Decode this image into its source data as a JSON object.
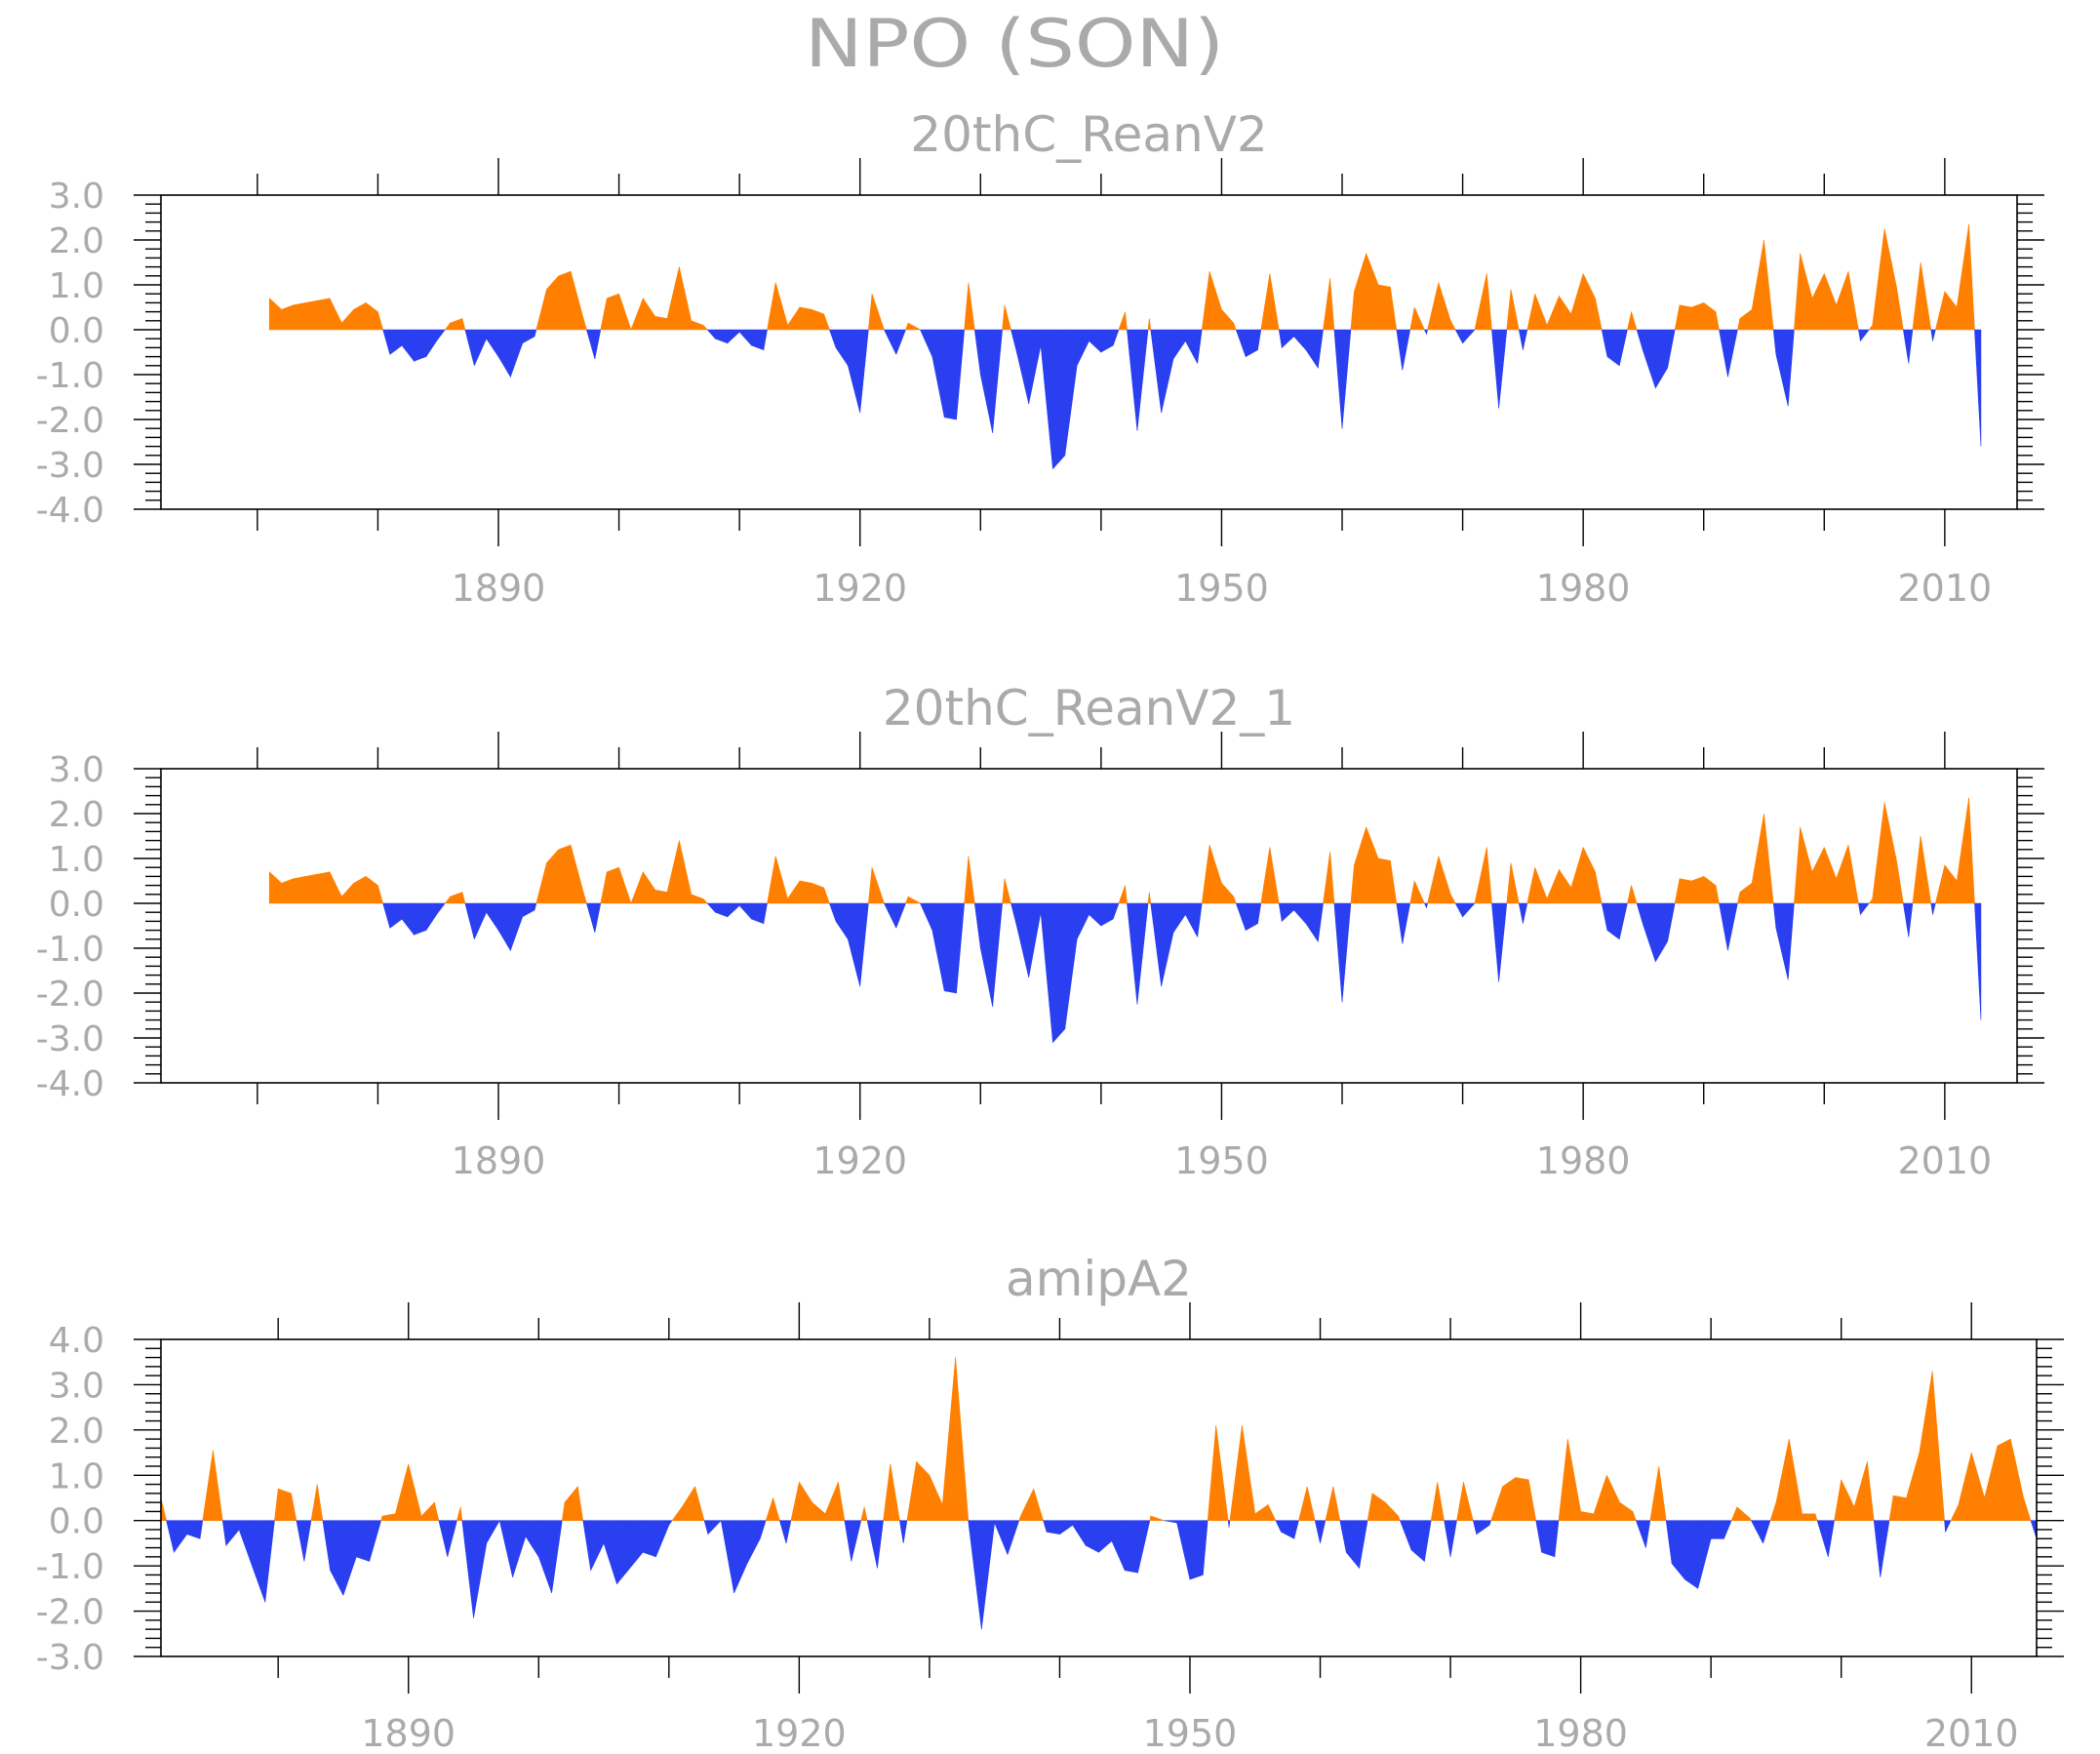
{
  "title": "NPO (SON)",
  "colors": {
    "positive": "#ff8000",
    "negative": "#2a3ff0",
    "text": "#aaaaaa",
    "frame": "#000000"
  },
  "chart_data": [
    {
      "type": "area",
      "title": "20thC_ReanV2",
      "start_year": 1871,
      "xlim": [
        1862,
        2016
      ],
      "x_ticks": [
        "1890",
        "1920",
        "1950",
        "1980",
        "2010"
      ],
      "ylim": [
        -4,
        3
      ],
      "y_ticks": [
        "3.0",
        "2.0",
        "1.0",
        "0.0",
        "-1.0",
        "-2.0",
        "-3.0",
        "-4.0"
      ],
      "fill_positive": "#ff8000",
      "fill_negative": "#2a3ff0",
      "values": [
        0.7,
        0.45,
        0.55,
        0.6,
        0.65,
        0.7,
        0.15,
        0.45,
        0.6,
        0.4,
        -0.55,
        -0.35,
        -0.7,
        -0.6,
        -0.2,
        0.15,
        0.25,
        -0.8,
        -0.2,
        -0.6,
        -1.05,
        -0.3,
        -0.15,
        0.9,
        1.2,
        1.3,
        0.3,
        -0.65,
        0.7,
        0.8,
        0.0,
        0.7,
        0.3,
        0.25,
        1.4,
        0.2,
        0.1,
        -0.2,
        -0.3,
        -0.05,
        -0.35,
        -0.45,
        1.05,
        0.1,
        0.5,
        0.45,
        0.35,
        -0.4,
        -0.8,
        -1.85,
        0.8,
        0.0,
        -0.55,
        0.15,
        0.0,
        -0.6,
        -1.95,
        -2.0,
        1.05,
        -1.0,
        -2.3,
        0.55,
        -0.5,
        -1.65,
        -0.35,
        -3.1,
        -2.8,
        -0.8,
        -0.25,
        -0.5,
        -0.35,
        0.4,
        -2.25,
        0.25,
        -1.85,
        -0.65,
        -0.25,
        -0.75,
        1.3,
        0.45,
        0.15,
        -0.6,
        -0.45,
        1.25,
        -0.4,
        -0.15,
        -0.45,
        -0.85,
        1.15,
        -2.2,
        0.85,
        1.7,
        1.0,
        0.95,
        -0.9,
        0.5,
        -0.1,
        1.05,
        0.2,
        -0.3,
        0.0,
        1.25,
        -1.75,
        0.9,
        -0.45,
        0.8,
        0.1,
        0.75,
        0.35,
        1.25,
        0.7,
        -0.6,
        -0.8,
        0.4,
        -0.5,
        -1.3,
        -0.85,
        0.55,
        0.5,
        0.6,
        0.4,
        -1.05,
        0.25,
        0.45,
        2.0,
        -0.55,
        -1.7,
        1.7,
        0.7,
        1.25,
        0.55,
        1.3,
        -0.25,
        0.1,
        2.25,
        0.95,
        -0.75,
        1.5,
        -0.25,
        0.85,
        0.5,
        2.35,
        -2.6
      ]
    },
    {
      "type": "area",
      "title": "20thC_ReanV2_1",
      "start_year": 1871,
      "xlim": [
        1862,
        2016
      ],
      "x_ticks": [
        "1890",
        "1920",
        "1950",
        "1980",
        "2010"
      ],
      "ylim": [
        -4,
        3
      ],
      "y_ticks": [
        "3.0",
        "2.0",
        "1.0",
        "0.0",
        "-1.0",
        "-2.0",
        "-3.0",
        "-4.0"
      ],
      "fill_positive": "#ff8000",
      "fill_negative": "#2a3ff0",
      "values": [
        0.7,
        0.45,
        0.55,
        0.6,
        0.65,
        0.7,
        0.15,
        0.45,
        0.6,
        0.4,
        -0.55,
        -0.35,
        -0.7,
        -0.6,
        -0.2,
        0.15,
        0.25,
        -0.8,
        -0.2,
        -0.6,
        -1.05,
        -0.3,
        -0.15,
        0.9,
        1.2,
        1.3,
        0.3,
        -0.65,
        0.7,
        0.8,
        0.0,
        0.7,
        0.3,
        0.25,
        1.4,
        0.2,
        0.1,
        -0.2,
        -0.3,
        -0.05,
        -0.35,
        -0.45,
        1.05,
        0.1,
        0.5,
        0.45,
        0.35,
        -0.4,
        -0.8,
        -1.85,
        0.8,
        0.0,
        -0.55,
        0.15,
        0.0,
        -0.6,
        -1.95,
        -2.0,
        1.05,
        -1.0,
        -2.3,
        0.55,
        -0.5,
        -1.65,
        -0.2,
        -3.1,
        -2.8,
        -0.8,
        -0.25,
        -0.5,
        -0.35,
        0.4,
        -2.25,
        0.25,
        -1.85,
        -0.65,
        -0.25,
        -0.75,
        1.3,
        0.45,
        0.15,
        -0.6,
        -0.45,
        1.25,
        -0.4,
        -0.15,
        -0.45,
        -0.85,
        1.15,
        -2.2,
        0.85,
        1.7,
        1.0,
        0.95,
        -0.9,
        0.5,
        -0.1,
        1.05,
        0.2,
        -0.3,
        0.0,
        1.25,
        -1.75,
        0.9,
        -0.45,
        0.8,
        0.1,
        0.75,
        0.35,
        1.25,
        0.7,
        -0.6,
        -0.8,
        0.4,
        -0.5,
        -1.3,
        -0.85,
        0.55,
        0.5,
        0.6,
        0.4,
        -1.05,
        0.25,
        0.45,
        2.0,
        -0.55,
        -1.7,
        1.7,
        0.7,
        1.25,
        0.55,
        1.3,
        -0.25,
        0.1,
        2.25,
        0.95,
        -0.75,
        1.5,
        -0.25,
        0.85,
        0.5,
        2.35,
        -2.6
      ]
    },
    {
      "type": "area",
      "title": "amipA2",
      "start_year": 1871,
      "xlim": [
        1871,
        2015
      ],
      "x_ticks": [
        "1890",
        "1920",
        "1950",
        "1980",
        "2010"
      ],
      "ylim": [
        -3,
        4
      ],
      "y_ticks": [
        "4.0",
        "3.0",
        "2.0",
        "1.0",
        "0.0",
        "-1.0",
        "-2.0",
        "-3.0"
      ],
      "fill_positive": "#ff8000",
      "fill_negative": "#2a3ff0",
      "values": [
        0.5,
        -0.7,
        -0.3,
        -0.4,
        1.55,
        -0.55,
        -0.2,
        -1.0,
        -1.8,
        0.7,
        0.6,
        -0.9,
        0.8,
        -1.1,
        -1.65,
        -0.8,
        -0.9,
        0.1,
        0.15,
        1.25,
        0.1,
        0.4,
        -0.8,
        0.3,
        -2.15,
        -0.5,
        0.0,
        -1.25,
        -0.35,
        -0.8,
        -1.6,
        0.4,
        0.75,
        -1.1,
        -0.5,
        -1.4,
        -1.05,
        -0.7,
        -0.8,
        -0.1,
        0.3,
        0.75,
        -0.3,
        0.0,
        -1.6,
        -0.95,
        -0.4,
        0.5,
        -0.5,
        0.85,
        0.4,
        0.15,
        0.85,
        -0.9,
        0.3,
        -1.05,
        1.25,
        -0.5,
        1.3,
        1.0,
        0.35,
        3.6,
        -0.05,
        -2.4,
        -0.05,
        -0.75,
        0.1,
        0.7,
        -0.25,
        -0.3,
        -0.1,
        -0.55,
        -0.7,
        -0.45,
        -1.1,
        -1.15,
        0.1,
        0.0,
        -0.05,
        -1.3,
        -1.2,
        2.1,
        -0.15,
        2.1,
        0.15,
        0.35,
        -0.25,
        -0.4,
        0.75,
        -0.5,
        0.75,
        -0.7,
        -1.05,
        0.6,
        0.4,
        0.1,
        -0.65,
        -0.9,
        0.85,
        -0.8,
        0.85,
        -0.3,
        -0.1,
        0.75,
        0.95,
        0.9,
        -0.7,
        -0.8,
        1.8,
        0.2,
        0.15,
        1.0,
        0.4,
        0.2,
        -0.6,
        1.2,
        -0.95,
        -1.3,
        -1.5,
        -0.4,
        -0.4,
        0.3,
        0.05,
        -0.5,
        0.4,
        1.8,
        0.15,
        0.15,
        -0.8,
        0.9,
        0.3,
        1.3,
        -1.25,
        0.55,
        0.5,
        1.5,
        3.3,
        -0.25,
        0.35,
        1.5,
        0.5,
        1.65,
        1.8,
        0.5,
        -0.4
      ]
    }
  ]
}
